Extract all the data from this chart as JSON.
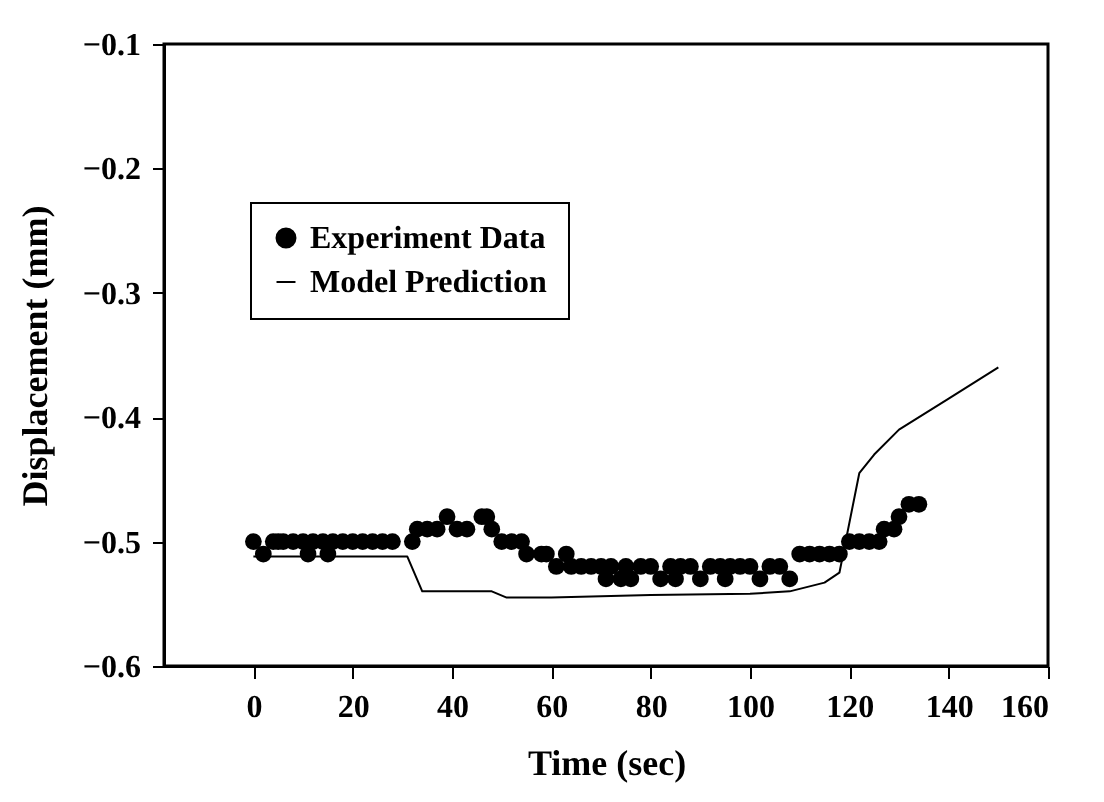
{
  "chart_data": {
    "type": "scatter",
    "xlabel": "Time (sec)",
    "ylabel": "Displacement (mm)",
    "xlim": [
      -18,
      160
    ],
    "xticks": [
      0,
      20,
      40,
      60,
      80,
      100,
      120,
      140,
      160
    ],
    "ylim": [
      -0.6,
      -0.1
    ],
    "yticks": [
      -0.6,
      -0.5,
      -0.4,
      -0.3,
      -0.2,
      -0.1
    ],
    "grid": false,
    "legend": "top left",
    "series": [
      {
        "name": "Experiment Data",
        "marker": "circle",
        "color": "#000000",
        "x": [
          0,
          2,
          4,
          5,
          6,
          8,
          10,
          11,
          12,
          14,
          15,
          16,
          18,
          20,
          22,
          24,
          26,
          28,
          32,
          33,
          35,
          37,
          39,
          41,
          43,
          46,
          47,
          48,
          50,
          52,
          54,
          55,
          58,
          59,
          61,
          63,
          64,
          66,
          68,
          70,
          71,
          72,
          74,
          75,
          76,
          78,
          80,
          82,
          84,
          85,
          86,
          88,
          90,
          92,
          94,
          95,
          96,
          98,
          100,
          102,
          104,
          106,
          108,
          110,
          112,
          114,
          116,
          118,
          120,
          122,
          124,
          126,
          127,
          129,
          130,
          132,
          134
        ],
        "values": [
          -0.5,
          -0.51,
          -0.5,
          -0.5,
          -0.5,
          -0.5,
          -0.5,
          -0.51,
          -0.5,
          -0.5,
          -0.51,
          -0.5,
          -0.5,
          -0.5,
          -0.5,
          -0.5,
          -0.5,
          -0.5,
          -0.5,
          -0.49,
          -0.49,
          -0.49,
          -0.48,
          -0.49,
          -0.49,
          -0.48,
          -0.48,
          -0.49,
          -0.5,
          -0.5,
          -0.5,
          -0.51,
          -0.51,
          -0.51,
          -0.52,
          -0.51,
          -0.52,
          -0.52,
          -0.52,
          -0.52,
          -0.53,
          -0.52,
          -0.53,
          -0.52,
          -0.53,
          -0.52,
          -0.52,
          -0.53,
          -0.52,
          -0.53,
          -0.52,
          -0.52,
          -0.53,
          -0.52,
          -0.52,
          -0.53,
          -0.52,
          -0.52,
          -0.52,
          -0.53,
          -0.52,
          -0.52,
          -0.53,
          -0.51,
          -0.51,
          -0.51,
          -0.51,
          -0.51,
          -0.5,
          -0.5,
          -0.5,
          -0.5,
          -0.49,
          -0.49,
          -0.48,
          -0.47,
          -0.47
        ]
      },
      {
        "name": "Model Prediction",
        "type": "line",
        "marker": "none",
        "line_style": "solid",
        "color": "#000000",
        "x": [
          0,
          31,
          34,
          48,
          51,
          60,
          80,
          100,
          108,
          115,
          118,
          122,
          125,
          130,
          140,
          150
        ],
        "values": [
          -0.512,
          -0.512,
          -0.54,
          -0.54,
          -0.545,
          -0.545,
          -0.543,
          -0.542,
          -0.54,
          -0.533,
          -0.525,
          -0.445,
          -0.43,
          -0.41,
          -0.385,
          -0.36
        ]
      }
    ]
  }
}
